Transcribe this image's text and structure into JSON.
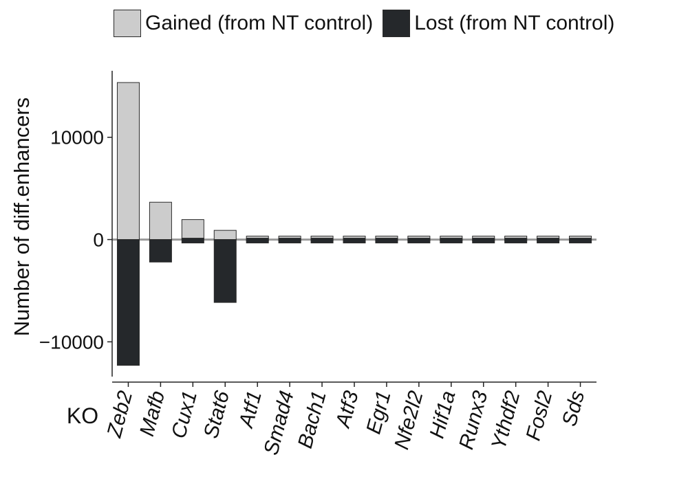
{
  "chart_data": {
    "type": "bar",
    "stacked": "diverging",
    "categories": [
      "Zeb2",
      "Mafb",
      "Cux1",
      "Stat6",
      "Atf1",
      "Smad4",
      "Bach1",
      "Atf3",
      "Egr1",
      "Nfe2l2",
      "Hif1a",
      "Runx3",
      "Ythdf2",
      "Fosl2",
      "Sds"
    ],
    "series": [
      {
        "name": "Gained (from NT control)",
        "color": "#cccccc",
        "values": [
          15350,
          3650,
          1950,
          900,
          150,
          120,
          60,
          40,
          40,
          30,
          40,
          60,
          50,
          40,
          40
        ]
      },
      {
        "name": "Lost (from NT control)",
        "color": "#25282b",
        "values": [
          -12300,
          -2200,
          -300,
          -6150,
          -350,
          -220,
          -180,
          -130,
          -200,
          -150,
          -160,
          -280,
          -150,
          -120,
          -150
        ]
      }
    ],
    "xlabel": "KO",
    "ylabel": "Number of diff.enhancers",
    "yticks": [
      -10000,
      0,
      10000
    ],
    "ylim": [
      -13400,
      16500
    ],
    "zero_line_color": "#999999",
    "grid": false,
    "legend_position": "top"
  }
}
